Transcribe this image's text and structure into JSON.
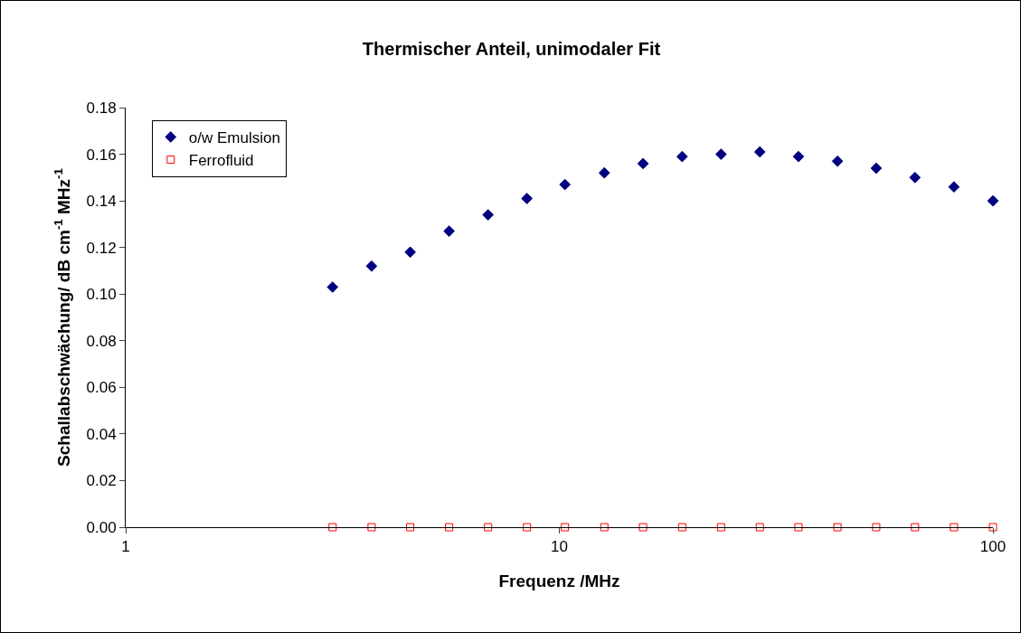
{
  "chart_data": {
    "type": "scatter",
    "title": "Thermischer Anteil, unimodaler Fit",
    "xlabel": "Frequenz /MHz",
    "ylabel": "Schallabschwächung/ dB cm$^{-1}$ MHz$^{-1}$",
    "x": [
      3,
      3.69,
      4.53,
      5.57,
      6.85,
      8.42,
      10.3,
      12.7,
      15.6,
      19.2,
      23.6,
      29.0,
      35.6,
      43.8,
      53.8,
      66.1,
      81.3,
      100
    ],
    "series": [
      {
        "name": "o/w Emulsion",
        "color": "#000080",
        "marker": "diamond",
        "values": [
          0.103,
          0.112,
          0.118,
          0.127,
          0.134,
          0.141,
          0.147,
          0.152,
          0.156,
          0.159,
          0.16,
          0.161,
          0.159,
          0.157,
          0.154,
          0.15,
          0.146,
          0.14
        ]
      },
      {
        "name": "Ferrofluid",
        "color": "#ff0000",
        "marker": "square",
        "values": [
          0,
          0,
          0,
          0,
          0,
          0,
          0,
          0,
          0,
          0,
          0,
          0,
          0,
          0,
          0,
          0,
          0,
          0
        ]
      }
    ],
    "log": "x",
    "xlim": [
      1,
      100
    ],
    "xticks": [
      1,
      10,
      100
    ],
    "ylim": [
      0,
      0.18
    ],
    "yticks": [
      {
        "value": 0,
        "label": "0.00"
      },
      {
        "value": 0.02,
        "label": "0.02"
      },
      {
        "value": 0.04,
        "label": "0.04"
      },
      {
        "value": 0.06,
        "label": "0.06"
      },
      {
        "value": 0.08,
        "label": "0.08"
      },
      {
        "value": 0.1,
        "label": "0.10"
      },
      {
        "value": 0.12,
        "label": "0.12"
      },
      {
        "value": 0.14,
        "label": "0.14"
      },
      {
        "value": 0.16,
        "label": "0.16"
      },
      {
        "value": 0.18,
        "label": "0.18"
      }
    ],
    "grid": false,
    "legend": "top left"
  }
}
